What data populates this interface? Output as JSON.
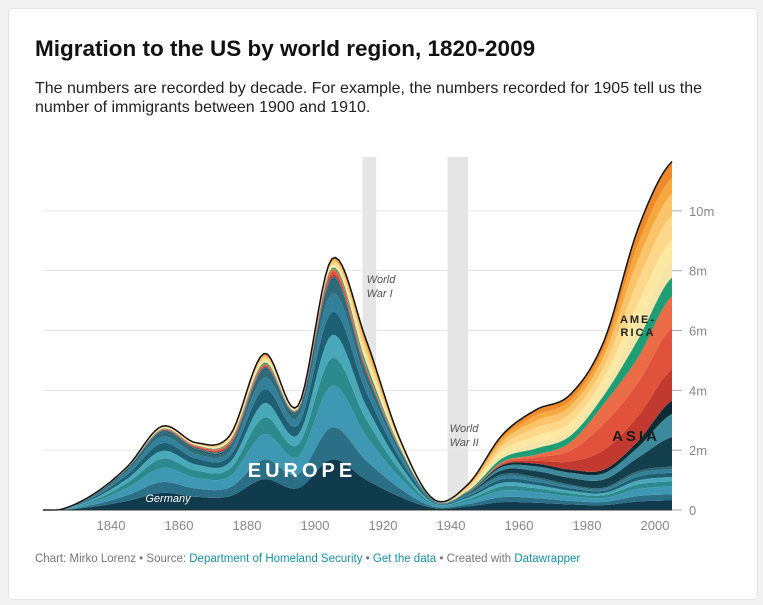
{
  "header": {
    "title": "Migration to the US by world region, 1820-2009",
    "subtitle": "The numbers are recorded by decade. For example, the numbers recorded for 1905 tell us the number of immigrants between 1900 and 1910."
  },
  "footer": {
    "chart_prefix": "Chart: Mirko Lorenz",
    "source_prefix": "Source:",
    "source_link": "Department of Homeland Security",
    "get_data": "Get the data",
    "created_prefix": "Created with",
    "datawrapper": "Datawrapper",
    "sep": " • "
  },
  "colors": {
    "europe": [
      "#0f3b4c",
      "#2a6f86",
      "#3e98b3",
      "#2c8a8e",
      "#4aa9b9",
      "#1d5f73",
      "#347f99",
      "#2e6a78"
    ],
    "america": [
      "#1e9e74",
      "#f7e4a8",
      "#fbe8a2",
      "#fdd88a",
      "#fbc46a",
      "#f6a83f",
      "#ef8a2b"
    ],
    "asia": [
      "#c23a2f",
      "#e0533a",
      "#ea6b45"
    ],
    "other": [
      "#13404c",
      "#3c8a9c",
      "#0d2a35"
    ],
    "war_band": "#e5e5e5"
  },
  "chart_data": {
    "type": "area",
    "stacked": true,
    "x": [
      1820,
      1825,
      1835,
      1845,
      1855,
      1865,
      1875,
      1885,
      1895,
      1905,
      1915,
      1925,
      1935,
      1945,
      1955,
      1965,
      1975,
      1985,
      1995,
      2005
    ],
    "series": [
      {
        "region": "europe",
        "values": [
          0,
          0.01,
          0.5,
          1.4,
          2.6,
          2.0,
          2.1,
          4.7,
          3.3,
          7.7,
          4.6,
          2.0,
          0.3,
          0.55,
          1.2,
          1.1,
          0.85,
          0.75,
          1.3,
          1.45
        ]
      },
      {
        "region": "america",
        "values": [
          0,
          0.005,
          0.03,
          0.05,
          0.1,
          0.1,
          0.2,
          0.35,
          0.1,
          0.35,
          0.9,
          0.3,
          0.03,
          0.25,
          0.9,
          1.5,
          1.6,
          2.1,
          4.3,
          4.5
        ]
      },
      {
        "region": "asia",
        "values": [
          0,
          0,
          0,
          0.002,
          0.04,
          0.07,
          0.12,
          0.1,
          0.03,
          0.25,
          0.15,
          0.03,
          0.01,
          0.01,
          0.1,
          0.3,
          0.9,
          2.2,
          2.8,
          3.5
        ]
      },
      {
        "region": "other",
        "values": [
          0,
          0,
          0.01,
          0.02,
          0.06,
          0.08,
          0.08,
          0.08,
          0.05,
          0.1,
          0.05,
          0.03,
          0.01,
          0.05,
          0.3,
          0.45,
          0.5,
          0.6,
          1.0,
          2.2
        ]
      }
    ],
    "x_ticks": [
      1840,
      1860,
      1880,
      1900,
      1920,
      1940,
      1960,
      1980,
      2000
    ],
    "y_ticks": [
      {
        "v": 0,
        "label": "0"
      },
      {
        "v": 2,
        "label": "2m"
      },
      {
        "v": 4,
        "label": "4m"
      },
      {
        "v": 6,
        "label": "6m"
      },
      {
        "v": 8,
        "label": "8m"
      },
      {
        "v": 10,
        "label": "10m"
      }
    ],
    "ylim": [
      0,
      11.8
    ],
    "xlim": [
      1820,
      2005
    ],
    "war_bands": [
      {
        "label_lines": [
          "World",
          "War I"
        ],
        "from": 1914,
        "to": 1918
      },
      {
        "label_lines": [
          "World",
          "War II"
        ],
        "from": 1939,
        "to": 1945
      }
    ],
    "labels": {
      "europe": "EUROPE",
      "germany": "Germany",
      "america_lines": [
        "AME-",
        "RICA"
      ],
      "asia": "ASIA"
    },
    "grid": true,
    "axis_side": "right"
  }
}
